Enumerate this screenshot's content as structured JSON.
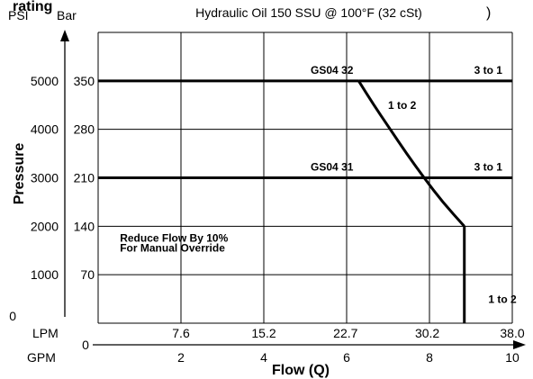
{
  "chart_data": {
    "type": "line",
    "title": "Hydraulic Oil 150 SSU @ 100°F (32 cSt)",
    "title_prefix": "rating",
    "title_suffix": ")",
    "ylabel": "Pressure",
    "xlabel": "Flow (Q)",
    "psi_axis": {
      "label": "PSI",
      "ticks": [
        {
          "v": 0,
          "label": "0"
        },
        {
          "v": 1000,
          "label": "1000"
        },
        {
          "v": 2000,
          "label": "2000"
        },
        {
          "v": 3000,
          "label": "3000"
        },
        {
          "v": 4000,
          "label": "4000"
        },
        {
          "v": 5000,
          "label": "5000"
        }
      ]
    },
    "bar_axis": {
      "label": "Bar",
      "ticks": [
        {
          "v": 70,
          "label": "70"
        },
        {
          "v": 140,
          "label": "140"
        },
        {
          "v": 210,
          "label": "210"
        },
        {
          "v": 280,
          "label": "280"
        },
        {
          "v": 350,
          "label": "350"
        }
      ]
    },
    "lpm_axis": {
      "label": "LPM",
      "ticks": [
        {
          "v": 7.6,
          "label": "7.6"
        },
        {
          "v": 15.2,
          "label": "15.2"
        },
        {
          "v": 22.7,
          "label": "22.7"
        },
        {
          "v": 30.2,
          "label": "30.2"
        },
        {
          "v": 38.0,
          "label": "38.0"
        }
      ]
    },
    "gpm_axis": {
      "label": "GPM",
      "ticks": [
        {
          "v": 0,
          "label": "0"
        },
        {
          "v": 2,
          "label": "2"
        },
        {
          "v": 4,
          "label": "4"
        },
        {
          "v": 6,
          "label": "6"
        },
        {
          "v": 8,
          "label": "8"
        },
        {
          "v": 10,
          "label": "10"
        }
      ]
    },
    "xlim": [
      0,
      38.0
    ],
    "ylim": [
      0,
      6000
    ],
    "grid": true,
    "series": [
      {
        "name": "GS04 32",
        "points": [
          [
            0,
            5000
          ],
          [
            23.9,
            5000
          ]
        ]
      },
      {
        "name": "GS04 31",
        "points": [
          [
            0,
            3000
          ],
          [
            38.0,
            3000
          ]
        ]
      },
      {
        "name": "3 to 1",
        "points": [
          [
            23.9,
            5000
          ],
          [
            38.0,
            5000
          ]
        ]
      },
      {
        "name": "1 to 2",
        "points": [
          [
            23.9,
            5000
          ],
          [
            25.3,
            4500
          ],
          [
            26.8,
            4000
          ],
          [
            28.3,
            3500
          ],
          [
            29.9,
            3000
          ],
          [
            31.6,
            2500
          ],
          [
            33.6,
            2000
          ]
        ]
      },
      {
        "name": "1 to 2",
        "points": [
          [
            33.6,
            2000
          ],
          [
            33.6,
            0
          ]
        ]
      }
    ],
    "annotations": [
      {
        "text": "GS04 32",
        "x": 19.5,
        "y": 5150
      },
      {
        "text": "3 to 1",
        "x": 34.5,
        "y": 5150
      },
      {
        "text": "1 to 2",
        "x": 26.6,
        "y": 4420
      },
      {
        "text": "GS04 31",
        "x": 19.5,
        "y": 3150
      },
      {
        "text": "3 to 1",
        "x": 34.5,
        "y": 3150
      },
      {
        "text": "1 to 2",
        "x": 35.8,
        "y": 420
      },
      {
        "text": "Reduce Flow By 10%",
        "x": 2.0,
        "y": 1680
      },
      {
        "text": "For Manual Override",
        "x": 2.0,
        "y": 1480
      }
    ]
  }
}
